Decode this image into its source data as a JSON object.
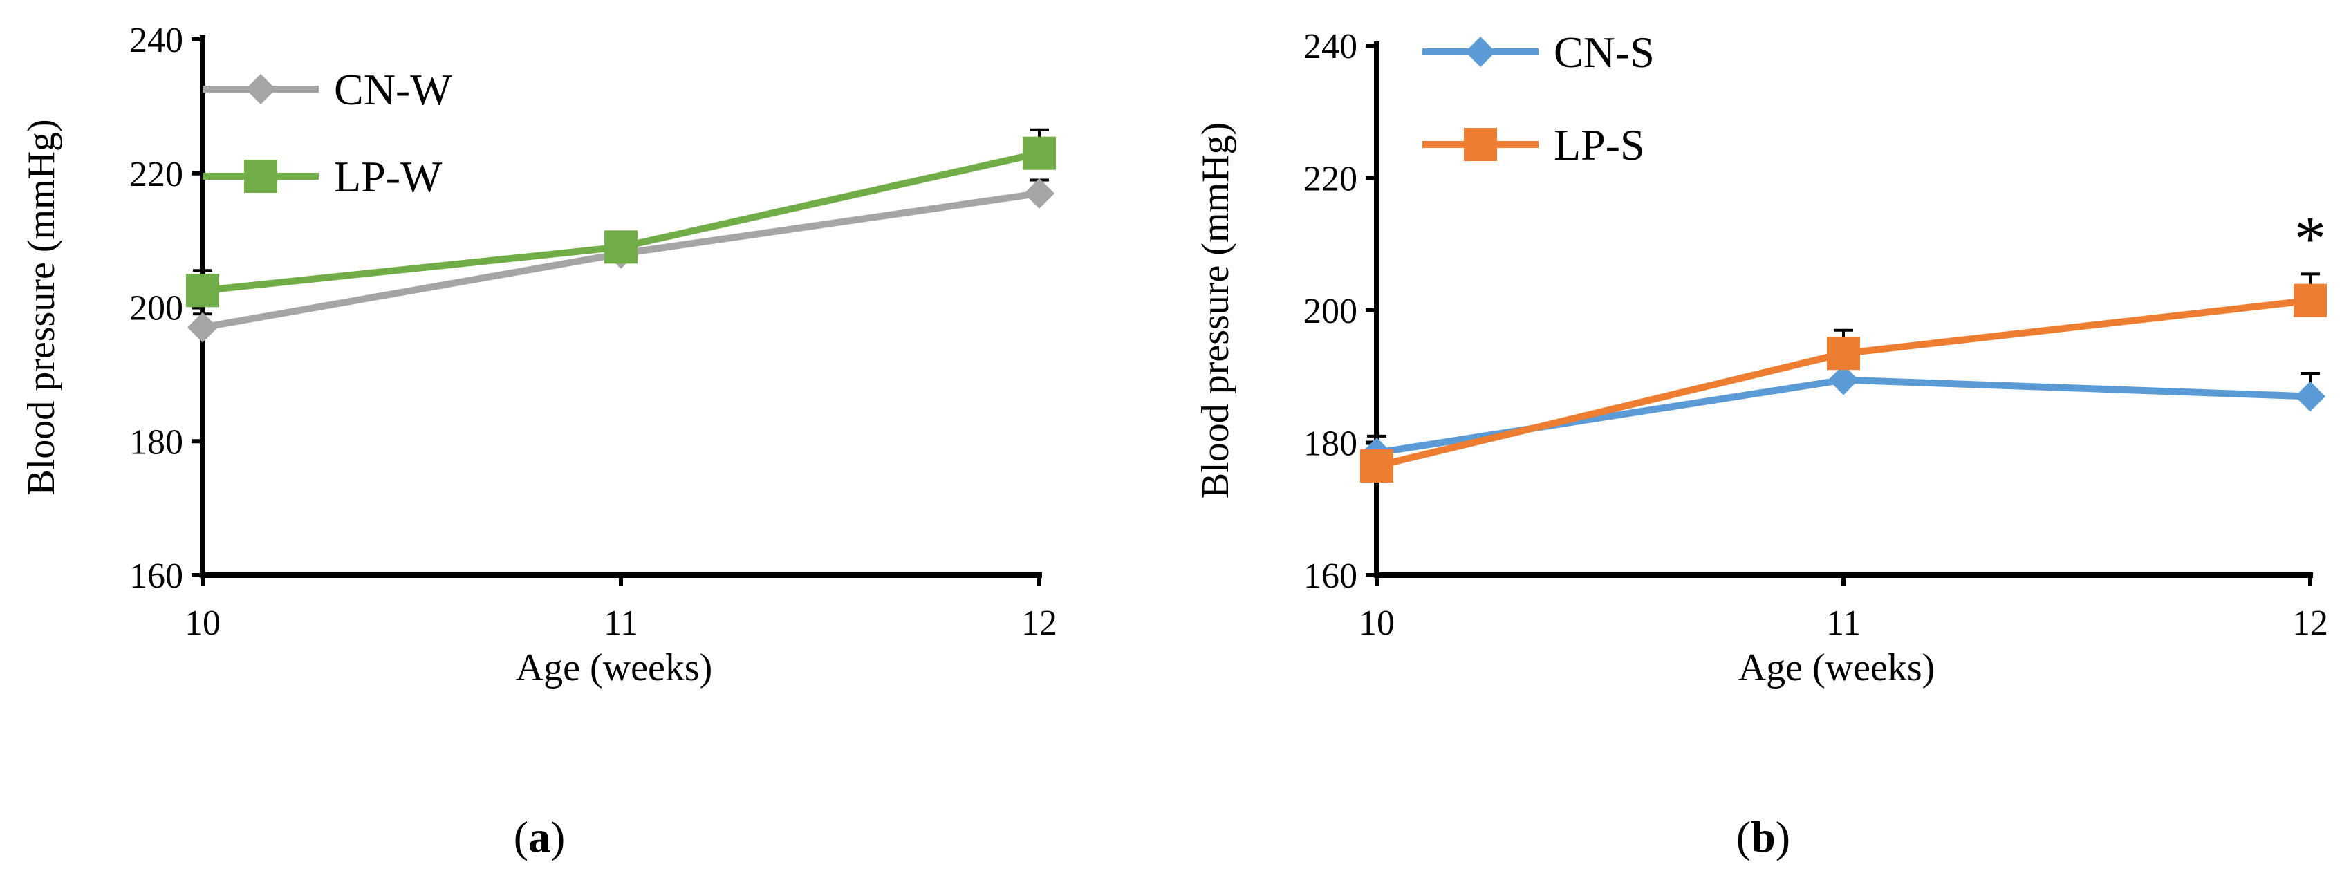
{
  "chart_data": [
    {
      "type": "line",
      "panel": "a",
      "panel_label": {
        "open": "(",
        "letter": "a",
        "close": ")"
      },
      "title": "",
      "xlabel": "Age (weeks)",
      "ylabel": "Blood pressure (mmHg)",
      "categories": [
        "10",
        "11",
        "12"
      ],
      "x": [
        10,
        11,
        12
      ],
      "xlim": [
        10,
        12
      ],
      "ylim": [
        160,
        240
      ],
      "yticks": [
        160,
        180,
        200,
        220,
        240
      ],
      "ytick_labels": [
        "160",
        "180",
        "200",
        "220",
        "240"
      ],
      "grid": false,
      "legend_position": "top-left",
      "annotations": [],
      "series": [
        {
          "name": "CN-W",
          "values": [
            197,
            208,
            217
          ],
          "error_plus": [
            2,
            2,
            2
          ],
          "color": "#a5a5a5",
          "marker": "diamond"
        },
        {
          "name": "LP-W",
          "values": [
            202.5,
            209,
            223
          ],
          "error_plus": [
            3,
            2,
            3.5
          ],
          "color": "#70ad47",
          "marker": "square"
        }
      ]
    },
    {
      "type": "line",
      "panel": "b",
      "panel_label": {
        "open": "(",
        "letter": "b",
        "close": ")"
      },
      "title": "",
      "xlabel": "Age (weeks)",
      "ylabel": "Blood pressure (mmHg)",
      "categories": [
        "10",
        "11",
        "12"
      ],
      "x": [
        10,
        11,
        12
      ],
      "xlim": [
        10,
        12
      ],
      "ylim": [
        160,
        240
      ],
      "yticks": [
        160,
        180,
        200,
        220,
        240
      ],
      "ytick_labels": [
        "160",
        "180",
        "200",
        "220",
        "240"
      ],
      "grid": false,
      "legend_position": "top-left",
      "annotations": [
        {
          "text": "*",
          "x": 12,
          "y": 212
        }
      ],
      "series": [
        {
          "name": "CN-S",
          "values": [
            178.5,
            189.5,
            187
          ],
          "error_plus": [
            2.5,
            2,
            3.5
          ],
          "color": "#5b9bd5",
          "marker": "diamond"
        },
        {
          "name": "LP-S",
          "values": [
            176.5,
            193.5,
            201.5
          ],
          "error_plus": [
            2,
            3.5,
            4
          ],
          "color": "#ed7d31",
          "marker": "square"
        }
      ]
    }
  ]
}
